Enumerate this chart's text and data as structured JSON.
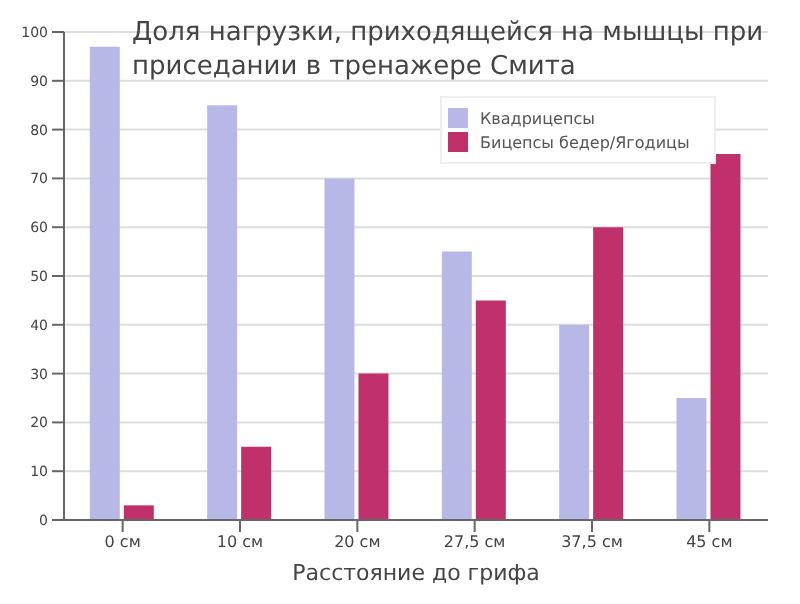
{
  "chart_data": {
    "type": "bar",
    "title": "Доля нагрузки, приходящейся на мышцы при приседании в тренажере Смита",
    "xlabel": "Расстояние до грифа",
    "categories": [
      "0 см",
      "10 см",
      "20 см",
      "27,5 см",
      "37,5 см",
      "45 см"
    ],
    "series": [
      {
        "name": "Квадрицепсы",
        "color": "#b8b8e8",
        "values": [
          97,
          85,
          70,
          55,
          40,
          25
        ]
      },
      {
        "name": "Бицепсы бедер/Ягодицы",
        "color": "#c0306a",
        "values": [
          3,
          15,
          30,
          45,
          60,
          75
        ]
      }
    ],
    "ylim": [
      0,
      100
    ],
    "yticks": [
      0,
      10,
      20,
      30,
      40,
      50,
      60,
      70,
      80,
      90,
      100
    ],
    "grid": "y",
    "legend": "top right"
  }
}
